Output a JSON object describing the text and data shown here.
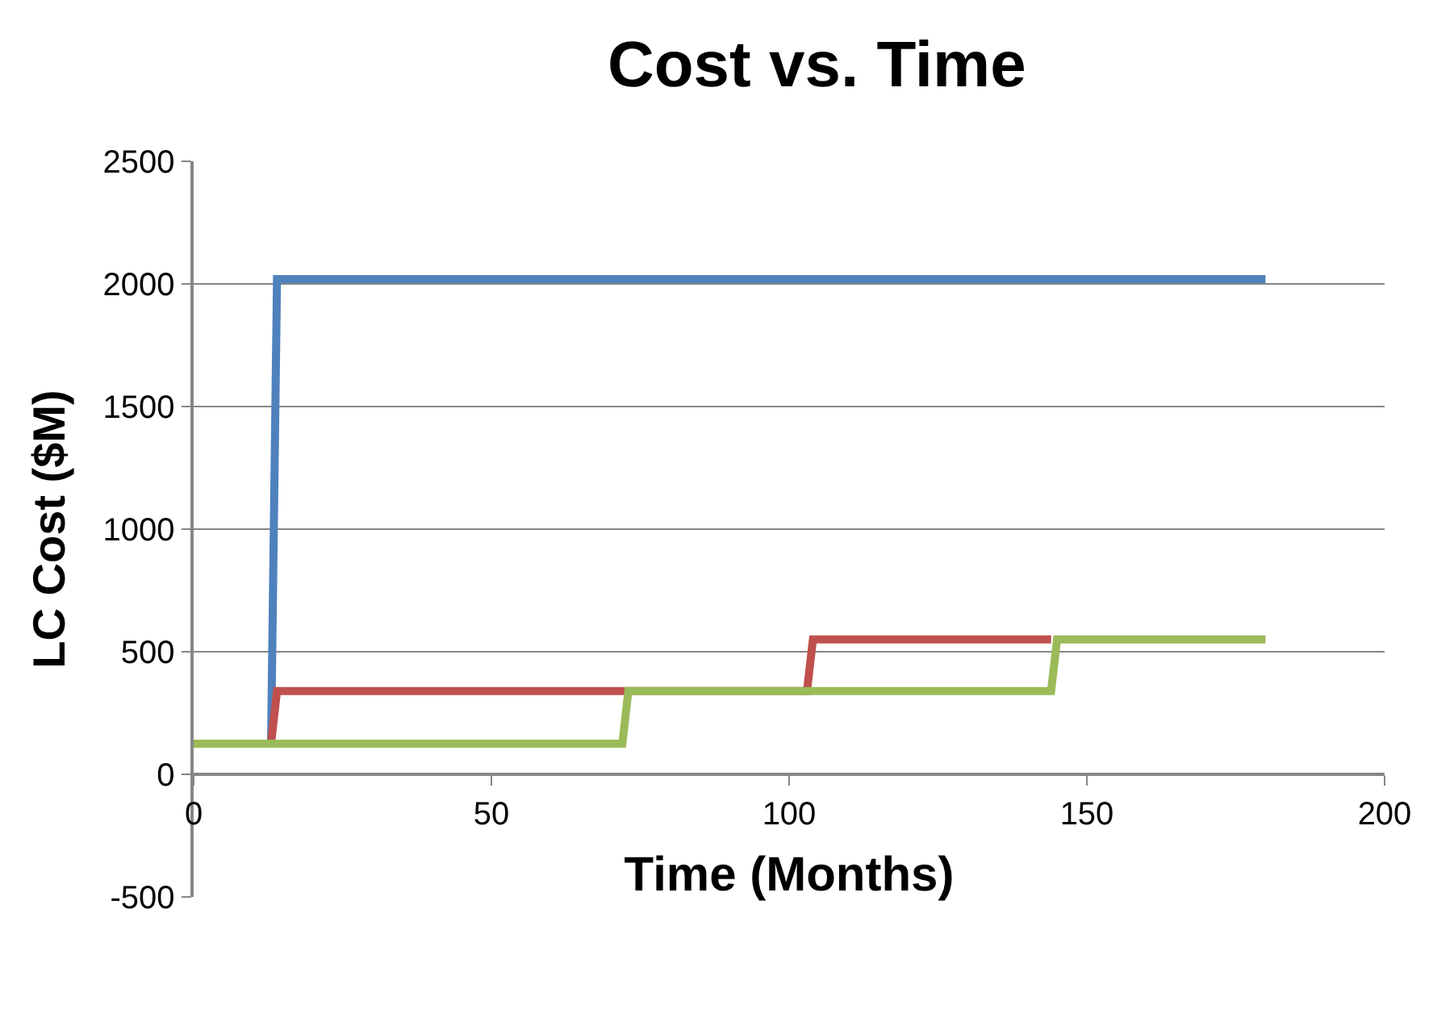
{
  "chart_data": {
    "type": "line",
    "title": "Cost vs. Time",
    "xlabel": "Time (Months)",
    "ylabel": "LC Cost ($M)",
    "series": [
      {
        "color": "#4f81bd",
        "x": [
          0,
          13,
          14,
          180
        ],
        "values": [
          125,
          125,
          2020,
          2020
        ]
      },
      {
        "color": "#c0504d",
        "x": [
          0,
          13,
          14,
          103,
          104,
          144
        ],
        "values": [
          125,
          125,
          340,
          340,
          550,
          550
        ]
      },
      {
        "color": "#9bbb59",
        "x": [
          0,
          72,
          73,
          144,
          145,
          180
        ],
        "values": [
          125,
          125,
          340,
          340,
          550,
          550
        ]
      }
    ],
    "xlim": [
      0,
      200
    ],
    "xticks": [
      0,
      50,
      100,
      150,
      200
    ],
    "ylim": [
      -500,
      2500
    ],
    "yticks": [
      -500,
      0,
      500,
      1000,
      1500,
      2000,
      2500
    ],
    "grid": "y",
    "legend": false,
    "marker": "none",
    "line_style": "solid"
  }
}
